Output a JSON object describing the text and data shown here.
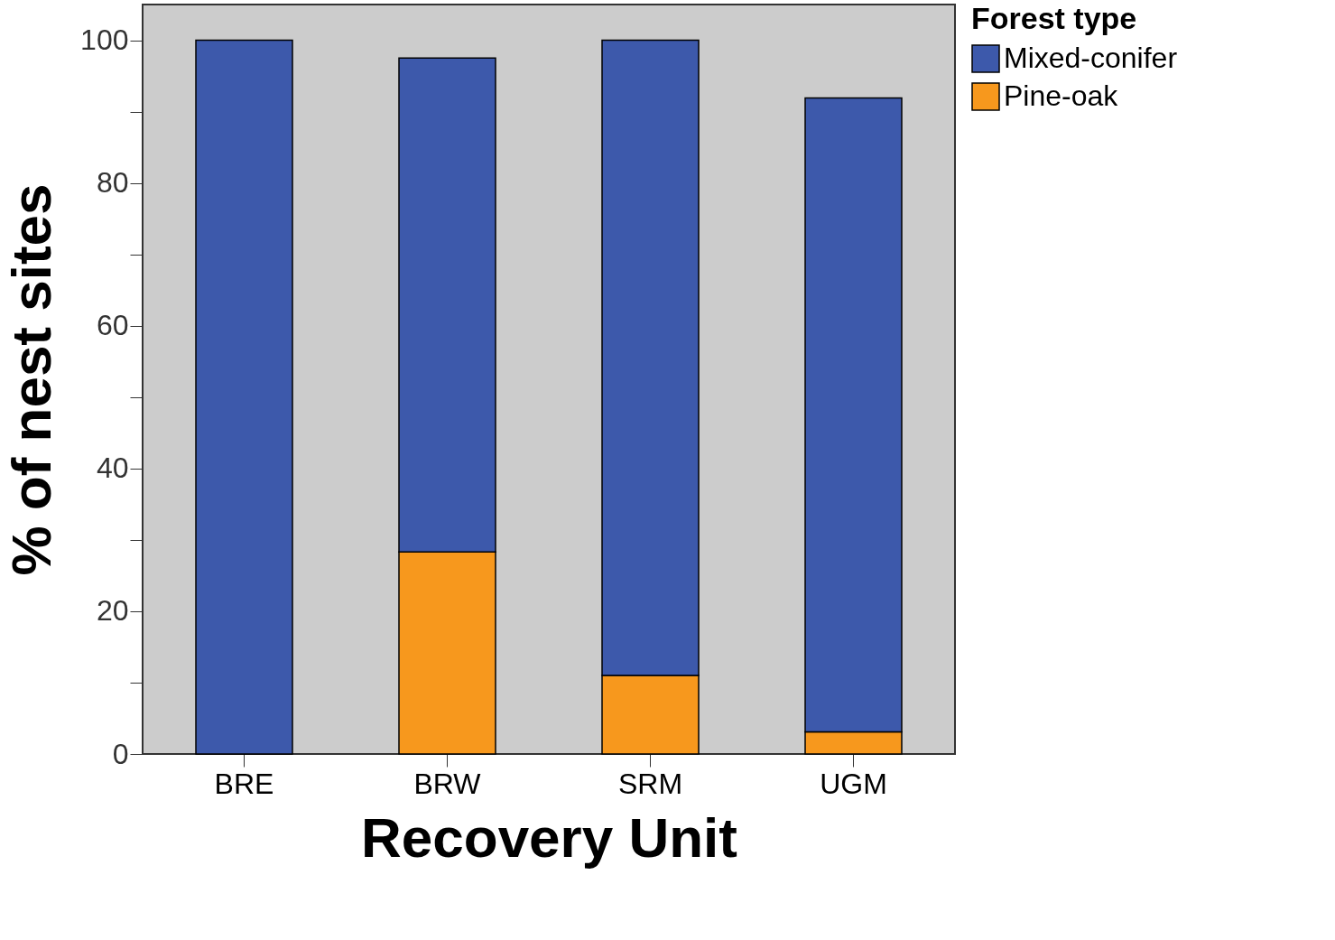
{
  "chart_data": {
    "type": "bar",
    "stacked": true,
    "xlabel": "Recovery Unit",
    "ylabel": "% of nest sites",
    "legend_title": "Forest type",
    "categories": [
      "BRE",
      "BRW",
      "SRM",
      "UGM"
    ],
    "series": [
      {
        "name": "Pine-oak",
        "color": "#f7981d",
        "values": [
          0,
          28.3,
          11.0,
          3.1
        ]
      },
      {
        "name": "Mixed-conifer",
        "color": "#3d59ab",
        "values": [
          100,
          69.2,
          89.0,
          88.8
        ]
      }
    ],
    "ylim": [
      0,
      105
    ],
    "yticks": [
      0,
      {
        "value": 10,
        "label": null
      },
      20,
      {
        "value": 30,
        "label": null
      },
      40,
      {
        "value": 50,
        "label": null
      },
      60,
      {
        "value": 70,
        "label": null
      },
      80,
      {
        "value": 90,
        "label": null
      },
      100
    ],
    "grid": false,
    "legend": "top right"
  }
}
